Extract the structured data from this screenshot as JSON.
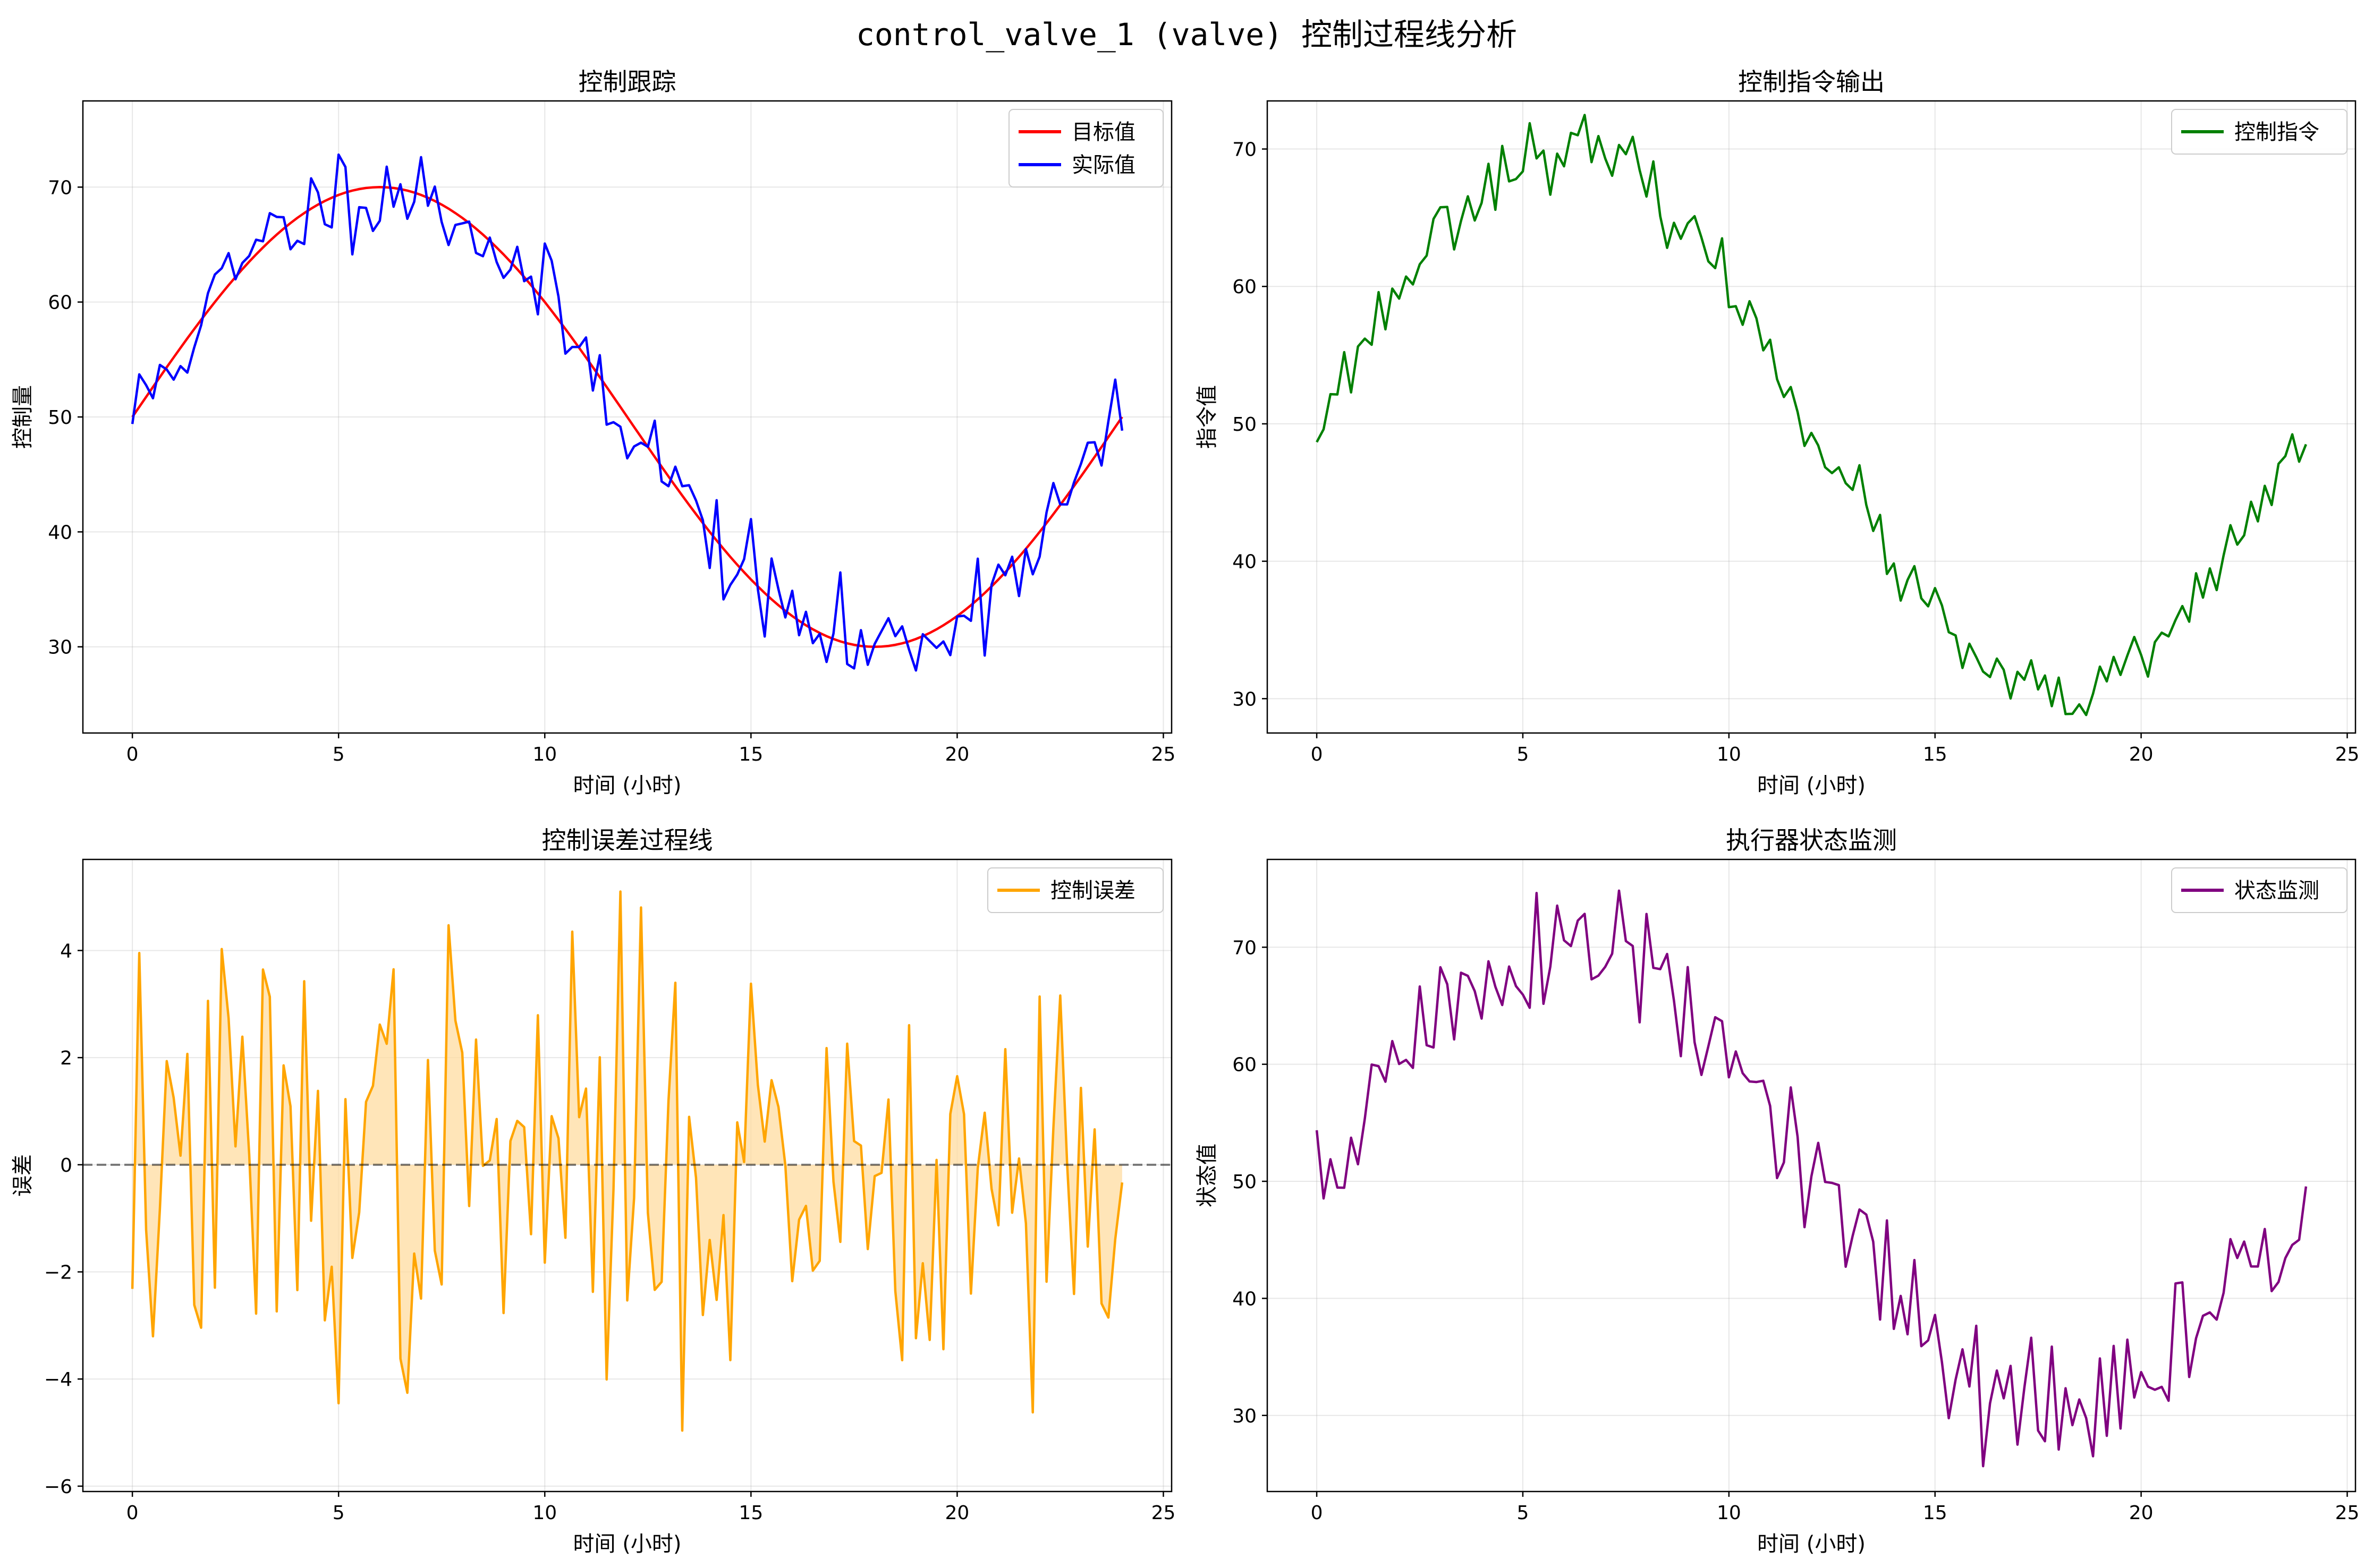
{
  "suptitle": "control_valve_1 (valve) 控制过程线分析",
  "chart_data": [
    {
      "type": "line",
      "title": "控制跟踪",
      "xlabel": "时间 (小时)",
      "ylabel": "控制量",
      "xlim": [
        -1.2,
        25.2
      ],
      "ylim": [
        22.5,
        77.5
      ],
      "xticks": [
        0,
        5,
        10,
        15,
        20,
        25
      ],
      "yticks": [
        30,
        40,
        50,
        60,
        70
      ],
      "grid": true,
      "legend": "top-right",
      "series": [
        {
          "name": "目标值",
          "color": "#ff0000",
          "width": 4.5,
          "kind": "sine",
          "mean": 50,
          "amp": 20
        },
        {
          "name": "实际值",
          "color": "#0000ff",
          "width": 4.5,
          "kind": "noisy_sine",
          "mean": 50,
          "amp": 20,
          "seed": 11,
          "noise": 2.2
        }
      ]
    },
    {
      "type": "line",
      "title": "控制指令输出",
      "xlabel": "时间 (小时)",
      "ylabel": "指令值",
      "xlim": [
        -1.2,
        25.2
      ],
      "ylim": [
        27.5,
        73.5
      ],
      "xticks": [
        0,
        5,
        10,
        15,
        20,
        25
      ],
      "yticks": [
        30,
        40,
        50,
        60,
        70
      ],
      "grid": true,
      "legend": "top-right",
      "series": [
        {
          "name": "控制指令",
          "color": "#008000",
          "width": 4.5,
          "kind": "noisy_sine",
          "mean": 50,
          "amp": 20,
          "seed": 23,
          "noise": 1.2
        }
      ]
    },
    {
      "type": "area",
      "title": "控制误差过程线",
      "xlabel": "时间 (小时)",
      "ylabel": "误差",
      "xlim": [
        -1.2,
        25.2
      ],
      "ylim": [
        -6.1,
        5.7
      ],
      "xticks": [
        0,
        5,
        10,
        15,
        20,
        25
      ],
      "yticks": [
        -6,
        -4,
        -2,
        0,
        2,
        4
      ],
      "grid": true,
      "legend": "top-right",
      "zero_line": true,
      "series": [
        {
          "name": "控制误差",
          "color": "#ffa500",
          "width": 4.5,
          "kind": "noise",
          "seed": 37,
          "noise": 2.1,
          "fill": "#ffdca0"
        }
      ]
    },
    {
      "type": "line",
      "title": "执行器状态监测",
      "xlabel": "时间 (小时)",
      "ylabel": "状态值",
      "xlim": [
        -1.2,
        25.2
      ],
      "ylim": [
        23.5,
        77.5
      ],
      "xticks": [
        0,
        5,
        10,
        15,
        20,
        25
      ],
      "yticks": [
        30,
        40,
        50,
        60,
        70
      ],
      "grid": true,
      "legend": "top-right",
      "series": [
        {
          "name": "状态监测",
          "color": "#800080",
          "width": 4.5,
          "kind": "noisy_sine",
          "mean": 50,
          "amp": 20,
          "seed": 51,
          "noise": 3.2
        }
      ]
    }
  ]
}
